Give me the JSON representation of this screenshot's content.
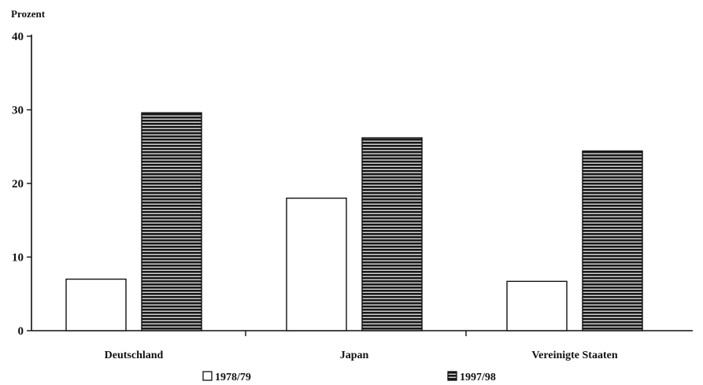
{
  "chart_data": {
    "type": "bar",
    "ylabel": "Prozent",
    "xlabel": "",
    "title": "",
    "ylim": [
      0,
      40
    ],
    "yticks": [
      0,
      10,
      20,
      30,
      40
    ],
    "categories": [
      "Deutschland",
      "Japan",
      "Vereinigte Staaten"
    ],
    "series": [
      {
        "name": "1978/79",
        "values": [
          7,
          18,
          6.7
        ],
        "fill": "white-outline"
      },
      {
        "name": "1997/98",
        "values": [
          29.6,
          26.2,
          24.4
        ],
        "fill": "dark-horizontal-stripes"
      }
    ],
    "grid": false,
    "legend_position": "bottom"
  },
  "colors": {
    "axis": "#111111",
    "bar_outline": "#111111",
    "stripe_dark": "#1a1a1a",
    "stripe_light": "#d8d8d8"
  }
}
